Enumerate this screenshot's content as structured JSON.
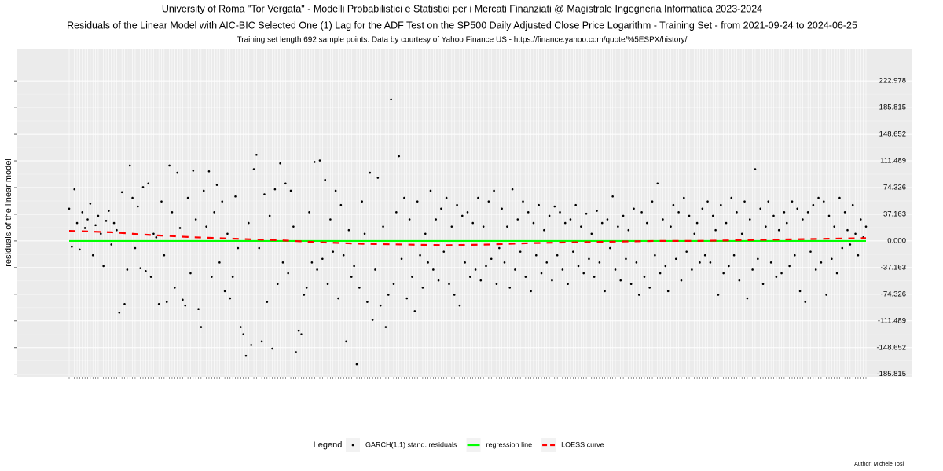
{
  "chart_data": {
    "type": "scatter",
    "title": "University of Roma \"Tor Vergata\" - Modelli Probabilistici e Statistici per i Mercati Finanziati @ Magistrale Ingegneria Informatica 2023-2024",
    "subtitle": "Residuals of the Linear Model with AIC-BIC Selected One (1) Lag for the ADF Test on the SP500 Daily Adjusted Close Price Logarithm - Training Set - from 2021-09-24 to 2024-06-25",
    "caption": "Training set length 692 sample points. Data by courtesy of Yahoo Finance US - https://finance.yahoo.com/quote/%5ESPX/history/",
    "y_label": "residuals of the linear model",
    "legend_title": "Legend",
    "author": "Author: Michele Tosi",
    "ylim": [
      -189.4,
      268
    ],
    "yticks": [
      -185.815,
      -148.652,
      -111.489,
      -74.326,
      -37.163,
      {
        "value": 0,
        "label": "0.000"
      },
      37.163,
      74.326,
      111.489,
      148.652,
      185.815,
      222.978
    ],
    "grid": true,
    "series": [
      {
        "name": "GARCH(1,1) stand. residuals",
        "color": "#000000",
        "values": [
          45,
          -8,
          72,
          25,
          -12,
          40,
          18,
          30,
          52,
          -20,
          22,
          35,
          10,
          -35,
          28,
          42,
          -5,
          25,
          15,
          -100,
          68,
          -88,
          -40,
          105,
          60,
          -10,
          48,
          -38,
          75,
          -42,
          80,
          -50,
          10,
          5,
          -88,
          55,
          -20,
          -85,
          105,
          40,
          -65,
          95,
          18,
          -82,
          -90,
          60,
          -45,
          98,
          30,
          -95,
          -120,
          70,
          20,
          97,
          -50,
          40,
          78,
          -30,
          55,
          -70,
          10,
          -80,
          -50,
          62,
          -10,
          -120,
          -130,
          -160,
          25,
          -145,
          100,
          120,
          -10,
          -140,
          65,
          -85,
          35,
          -150,
          72,
          -60,
          108,
          -30,
          80,
          -45,
          70,
          20,
          -155,
          -125,
          -130,
          -75,
          -65,
          40,
          -30,
          110,
          -40,
          112,
          -25,
          85,
          -60,
          30,
          -15,
          70,
          -80,
          50,
          -20,
          -140,
          15,
          -50,
          -35,
          -172,
          -65,
          55,
          10,
          -85,
          95,
          -110,
          -40,
          88,
          -90,
          20,
          -120,
          -75,
          197,
          -60,
          40,
          118,
          -25,
          60,
          -80,
          30,
          -50,
          -98,
          55,
          -20,
          -65,
          10,
          -30,
          70,
          -40,
          30,
          -55,
          45,
          -15,
          60,
          -60,
          20,
          -75,
          50,
          -90,
          35,
          -30,
          40,
          -50,
          25,
          -40,
          60,
          -55,
          20,
          -35,
          55,
          -25,
          70,
          -60,
          -10,
          45,
          -30,
          20,
          -65,
          72,
          -40,
          30,
          -15,
          55,
          -50,
          40,
          -70,
          25,
          -20,
          50,
          -45,
          15,
          -30,
          35,
          -55,
          48,
          -20,
          40,
          -40,
          25,
          -60,
          30,
          -15,
          50,
          -35,
          20,
          -45,
          38,
          -25,
          10,
          -50,
          42,
          -30,
          25,
          -70,
          30,
          -10,
          62,
          -40,
          20,
          -55,
          35,
          -25,
          15,
          -60,
          45,
          -30,
          -75,
          40,
          -50,
          25,
          -65,
          55,
          -20,
          80,
          -45,
          30,
          -35,
          -70,
          20,
          50,
          -25,
          40,
          -55,
          60,
          -15,
          35,
          -40,
          10,
          25,
          -30,
          45,
          -20,
          55,
          -30,
          35,
          15,
          -75,
          50,
          -45,
          25,
          -35,
          60,
          -20,
          40,
          -55,
          10,
          55,
          -80,
          30,
          -40,
          100,
          -25,
          45,
          -60,
          20,
          55,
          -30,
          35,
          -50,
          15,
          -45,
          40,
          25,
          -35,
          55,
          -20,
          45,
          -70,
          30,
          -85,
          40,
          -15,
          50,
          -40,
          60,
          -30,
          55,
          -75,
          35,
          -25,
          20,
          -45,
          60,
          -10,
          40,
          15,
          -5,
          50,
          10,
          -20,
          30,
          5,
          20
        ]
      },
      {
        "name": "regression line",
        "color": "#00ff00",
        "values": [
          0,
          0
        ]
      },
      {
        "name": "LOESS curve",
        "color": "#ff0000",
        "values": [
          14,
          12,
          8,
          5,
          3,
          1,
          -2,
          -4,
          -5,
          -6,
          -5,
          -3,
          -2,
          -1,
          0,
          0,
          1,
          2,
          3,
          4
        ]
      }
    ]
  }
}
